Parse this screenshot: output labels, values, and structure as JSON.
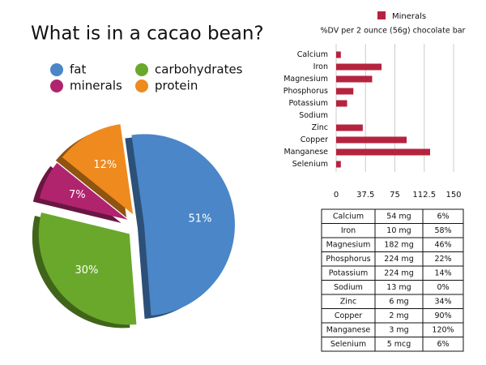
{
  "chart_data": [
    {
      "type": "pie",
      "title": "What is in a cacao bean?",
      "categories": [
        "fat",
        "carbohydrates",
        "minerals",
        "protein"
      ],
      "values": [
        51,
        30,
        7,
        12
      ],
      "value_labels": [
        "51%",
        "30%",
        "7%",
        "12%"
      ],
      "colors": [
        "#4a86c8",
        "#6aa82c",
        "#b0246e",
        "#ee8a1e"
      ]
    },
    {
      "type": "hbar",
      "subtitle": "%DV per 2 ounce (56g) chocolate bar",
      "categories": [
        "Calcium",
        "Iron",
        "Magnesium",
        "Phosphorus",
        "Potassium",
        "Sodium",
        "Zinc",
        "Copper",
        "Manganese",
        "Selenium"
      ],
      "series": [
        {
          "name": "Minerals",
          "color": "#b5233f",
          "values": [
            6,
            58,
            46,
            22,
            14,
            0,
            34,
            90,
            120,
            6
          ]
        }
      ],
      "xlim": [
        0,
        150
      ],
      "xticks": [
        0,
        37.5,
        75,
        112.5,
        150
      ],
      "grid": true,
      "legend": "top"
    }
  ],
  "table": {
    "rows": [
      [
        "Calcium",
        "54 mg",
        "6%"
      ],
      [
        "Iron",
        "10 mg",
        "58%"
      ],
      [
        "Magnesium",
        "182 mg",
        "46%"
      ],
      [
        "Phosphorus",
        "224 mg",
        "22%"
      ],
      [
        "Potassium",
        "224 mg",
        "14%"
      ],
      [
        "Sodium",
        "13 mg",
        "0%"
      ],
      [
        "Zinc",
        "6 mg",
        "34%"
      ],
      [
        "Copper",
        "2 mg",
        "90%"
      ],
      [
        "Manganese",
        "3 mg",
        "120%"
      ],
      [
        "Selenium",
        "5 mcg",
        "6%"
      ]
    ]
  }
}
